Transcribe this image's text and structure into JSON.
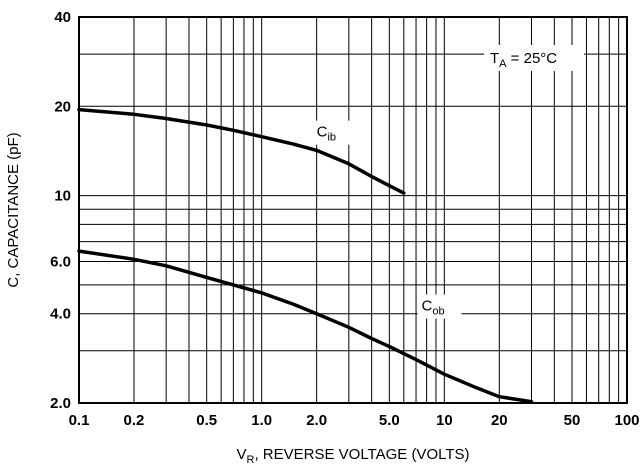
{
  "chart_data": {
    "type": "line",
    "xscale": "log",
    "yscale": "log",
    "xlim": [
      0.1,
      100
    ],
    "ylim": [
      2,
      40
    ],
    "grid": true,
    "xlabel": {
      "main": "V",
      "sub": "R",
      "rest": ", REVERSE VOLTAGE (VOLTS)"
    },
    "ylabel": "C, CAPACITANCE (pF)",
    "xticks": [
      {
        "v": 0.1,
        "label": "0.1"
      },
      {
        "v": 0.2,
        "label": "0.2"
      },
      {
        "v": 0.5,
        "label": "0.5"
      },
      {
        "v": 1,
        "label": "1.0"
      },
      {
        "v": 2,
        "label": "2.0"
      },
      {
        "v": 5,
        "label": "5.0"
      },
      {
        "v": 10,
        "label": "10"
      },
      {
        "v": 20,
        "label": "20"
      },
      {
        "v": 50,
        "label": "50"
      },
      {
        "v": 100,
        "label": "100"
      }
    ],
    "yticks": [
      {
        "v": 2,
        "label": "2.0"
      },
      {
        "v": 4,
        "label": "4.0"
      },
      {
        "v": 6,
        "label": "6.0"
      },
      {
        "v": 10,
        "label": "10"
      },
      {
        "v": 20,
        "label": "20"
      },
      {
        "v": 40,
        "label": "40"
      }
    ],
    "condition": {
      "main": "T",
      "sub": "A",
      "rest": " = 25°C"
    },
    "series": [
      {
        "name": {
          "main": "C",
          "sub": "ib"
        },
        "label_at": [
          2.0,
          15.8
        ],
        "points": [
          [
            0.1,
            19.5
          ],
          [
            0.2,
            18.8
          ],
          [
            0.3,
            18.2
          ],
          [
            0.5,
            17.3
          ],
          [
            0.7,
            16.6
          ],
          [
            1.0,
            15.8
          ],
          [
            1.5,
            14.9
          ],
          [
            2.0,
            14.2
          ],
          [
            3.0,
            12.8
          ],
          [
            4.0,
            11.6
          ],
          [
            5.0,
            10.8
          ],
          [
            6.0,
            10.2
          ]
        ]
      },
      {
        "name": {
          "main": "C",
          "sub": "ob"
        },
        "label_at": [
          7.5,
          4.1
        ],
        "points": [
          [
            0.1,
            6.5
          ],
          [
            0.2,
            6.1
          ],
          [
            0.3,
            5.8
          ],
          [
            0.5,
            5.3
          ],
          [
            0.7,
            5.0
          ],
          [
            1.0,
            4.7
          ],
          [
            1.5,
            4.3
          ],
          [
            2.0,
            4.0
          ],
          [
            3.0,
            3.6
          ],
          [
            4.0,
            3.3
          ],
          [
            5.0,
            3.1
          ],
          [
            7.0,
            2.8
          ],
          [
            10.0,
            2.5
          ],
          [
            15.0,
            2.25
          ],
          [
            20.0,
            2.1
          ],
          [
            30.0,
            2.02
          ]
        ]
      }
    ]
  }
}
